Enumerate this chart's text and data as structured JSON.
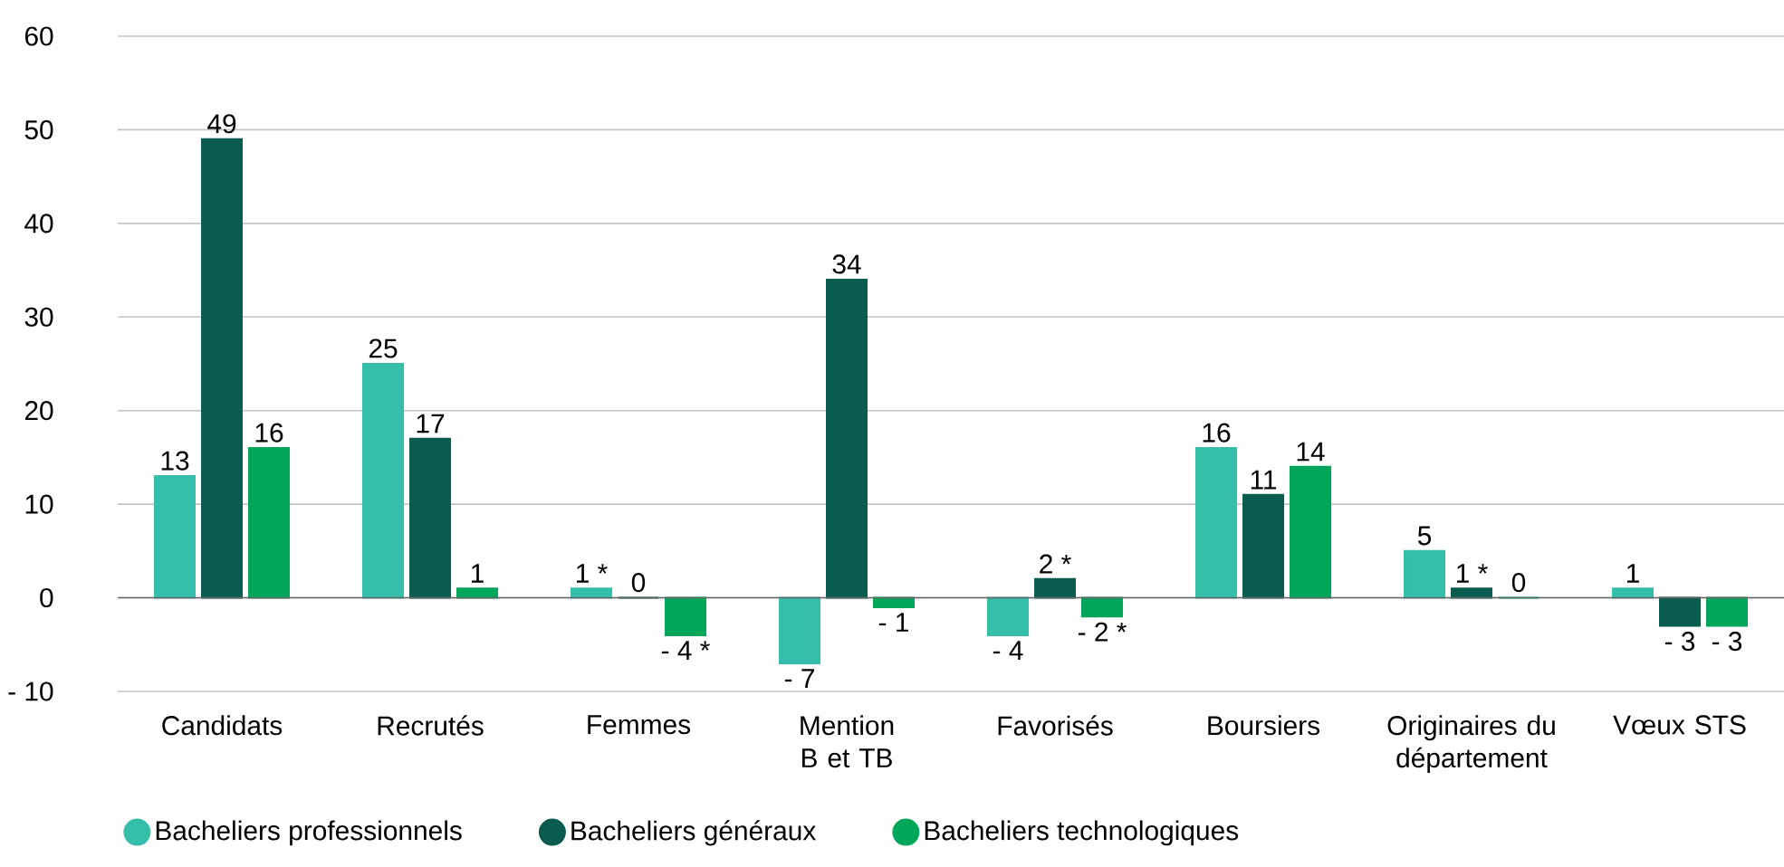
{
  "chart_data": {
    "type": "bar",
    "categories": [
      "Candidats",
      "Recrutés",
      "Femmes",
      "Mention B et TB",
      "Favorisés",
      "Boursiers",
      "Originaires du département",
      "Vœux STS"
    ],
    "series": [
      {
        "name": "Bacheliers professionnels",
        "color": "#35bfab",
        "values": [
          13,
          25,
          1,
          -7,
          -4,
          16,
          5,
          1
        ],
        "value_labels": [
          "13",
          "25",
          "1 *",
          "- 7",
          "- 4",
          "16",
          "5",
          "1"
        ]
      },
      {
        "name": "Bacheliers généraux",
        "color": "#0b5c50",
        "values": [
          49,
          17,
          0,
          34,
          2,
          11,
          1,
          -3
        ],
        "value_labels": [
          "49",
          "17",
          "0",
          "34",
          "2 *",
          "11",
          "1 *",
          "- 3"
        ]
      },
      {
        "name": "Bacheliers technologiques",
        "color": "#00a65a",
        "values": [
          16,
          1,
          -4,
          -1,
          -2,
          14,
          0,
          -3
        ],
        "value_labels": [
          "16",
          "1",
          "- 4 *",
          "- 1",
          "- 2 *",
          "14",
          "0",
          "- 3"
        ]
      }
    ],
    "ylim": [
      -10,
      60
    ],
    "yticks": [
      {
        "value": -10,
        "label": "- 10"
      },
      0,
      10,
      20,
      30,
      40,
      50,
      60
    ],
    "grid": "y",
    "legend": "bottom"
  }
}
